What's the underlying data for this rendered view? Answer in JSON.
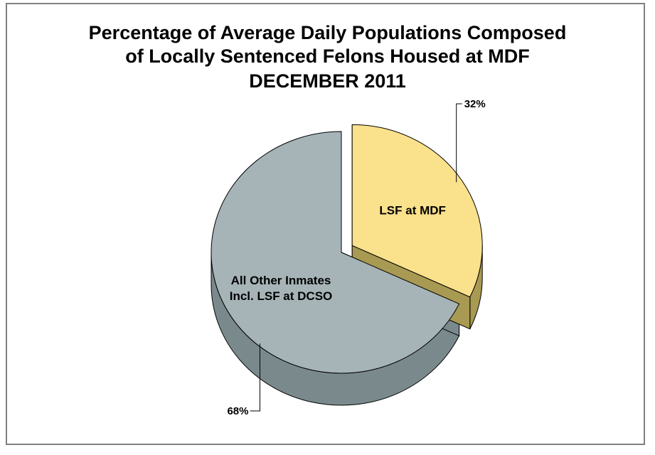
{
  "chart_data": {
    "type": "pie",
    "title_lines": [
      "Percentage of Average Daily Populations Composed",
      "of Locally Sentenced Felons Housed at MDF",
      "DECEMBER 2011"
    ],
    "slices": [
      {
        "name_lines": [
          "LSF at MDF"
        ],
        "value": 32,
        "value_label": "32%",
        "color": "#FAE18C",
        "side_color": "#A89A52"
      },
      {
        "name_lines": [
          "All Other Inmates",
          "Incl. LSF at DCSO"
        ],
        "value": 68,
        "value_label": "68%",
        "color": "#A6B4B8",
        "side_color": "#7A8A8C"
      }
    ],
    "exploded_slice": "LSF at MDF",
    "three_d": true,
    "legend": "none"
  }
}
